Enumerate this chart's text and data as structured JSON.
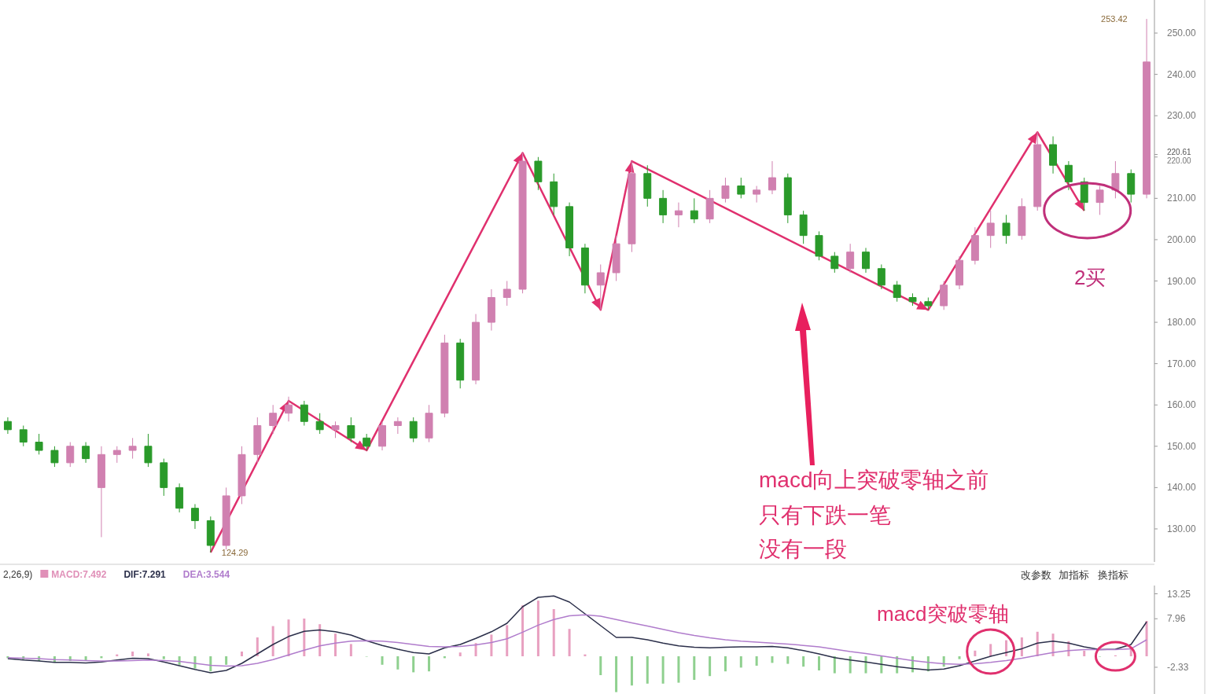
{
  "chart_data": [
    {
      "type": "candlestick",
      "categories": [
        null,
        null,
        null,
        null,
        null,
        null,
        null,
        null,
        null,
        null,
        null,
        null,
        null,
        null,
        null,
        null,
        null,
        null,
        null,
        null,
        null,
        null,
        null,
        null,
        null,
        null,
        null,
        null,
        null,
        null,
        null,
        null,
        null,
        null,
        null,
        null,
        null,
        null,
        null,
        null,
        null,
        null,
        null,
        null,
        null,
        null,
        null,
        null,
        null,
        null,
        null,
        null,
        null,
        null,
        null,
        null,
        null,
        null,
        null,
        null,
        null,
        null,
        null,
        null,
        null,
        null,
        null,
        null,
        null,
        null,
        null,
        null,
        null,
        null
      ],
      "ohlc": [
        [
          156,
          157,
          153,
          154
        ],
        [
          154,
          155,
          150,
          151
        ],
        [
          151,
          153,
          148,
          149
        ],
        [
          149,
          150,
          145,
          146
        ],
        [
          146,
          151,
          145,
          150
        ],
        [
          150,
          151,
          146,
          147
        ],
        [
          140,
          150,
          128,
          148
        ],
        [
          148,
          150,
          146,
          149
        ],
        [
          149,
          152,
          147,
          150
        ],
        [
          150,
          153,
          145,
          146
        ],
        [
          146,
          147,
          138,
          140
        ],
        [
          140,
          141,
          134,
          135
        ],
        [
          135,
          136,
          130,
          132
        ],
        [
          132,
          133,
          124.29,
          126
        ],
        [
          126,
          140,
          125,
          138
        ],
        [
          138,
          150,
          136,
          148
        ],
        [
          148,
          157,
          146,
          155
        ],
        [
          155,
          160,
          153,
          158
        ],
        [
          158,
          162,
          156,
          160
        ],
        [
          160,
          161,
          155,
          156
        ],
        [
          156,
          158,
          153,
          154
        ],
        [
          154,
          156,
          152,
          155
        ],
        [
          155,
          157,
          151,
          152
        ],
        [
          152,
          153,
          149,
          150
        ],
        [
          150,
          156,
          149,
          155
        ],
        [
          155,
          157,
          153,
          156
        ],
        [
          156,
          157,
          151,
          152
        ],
        [
          152,
          160,
          151,
          158
        ],
        [
          158,
          177,
          157,
          175
        ],
        [
          175,
          176,
          164,
          166
        ],
        [
          166,
          182,
          165,
          180
        ],
        [
          180,
          188,
          178,
          186
        ],
        [
          186,
          190,
          184,
          188
        ],
        [
          188,
          221,
          187,
          219
        ],
        [
          219,
          220,
          212,
          214
        ],
        [
          214,
          216,
          206,
          208
        ],
        [
          208,
          209,
          196,
          198
        ],
        [
          198,
          199,
          187,
          189
        ],
        [
          189,
          194,
          183,
          192
        ],
        [
          192,
          201,
          190,
          199
        ],
        [
          199,
          219,
          197,
          216
        ],
        [
          216,
          218,
          208,
          210
        ],
        [
          210,
          212,
          204,
          206
        ],
        [
          206,
          209,
          203,
          207
        ],
        [
          207,
          210,
          204,
          205
        ],
        [
          205,
          212,
          204,
          210
        ],
        [
          210,
          215,
          209,
          213
        ],
        [
          213,
          215,
          210,
          211
        ],
        [
          211,
          213,
          209,
          212
        ],
        [
          212,
          219,
          211,
          215
        ],
        [
          215,
          216,
          204,
          206
        ],
        [
          206,
          207,
          199,
          201
        ],
        [
          201,
          202,
          195,
          196
        ],
        [
          196,
          197,
          192,
          193
        ],
        [
          193,
          199,
          192,
          197
        ],
        [
          197,
          198,
          192,
          193
        ],
        [
          193,
          194,
          188,
          189
        ],
        [
          189,
          190,
          185,
          186
        ],
        [
          186,
          187,
          184,
          185
        ],
        [
          185,
          186,
          183,
          184
        ],
        [
          184,
          190,
          183,
          189
        ],
        [
          189,
          196,
          188,
          195
        ],
        [
          195,
          203,
          194,
          201
        ],
        [
          201,
          207,
          198,
          204
        ],
        [
          204,
          206,
          199,
          201
        ],
        [
          201,
          210,
          200,
          208
        ],
        [
          208,
          226,
          207,
          223
        ],
        [
          223,
          225,
          216,
          218
        ],
        [
          218,
          219,
          212,
          214
        ],
        [
          214,
          215,
          207,
          209
        ],
        [
          209,
          213,
          206,
          212
        ],
        [
          212,
          219,
          210,
          216
        ],
        [
          216,
          217,
          209,
          211
        ],
        [
          211,
          253.42,
          210,
          243
        ]
      ],
      "colors": [
        "#2a9a2a",
        "#2a9a2a",
        "#2a9a2a",
        "#2a9a2a",
        "#d080b0",
        "#2a9a2a",
        "#d080b0",
        "#d080b0",
        "#d080b0",
        "#2a9a2a",
        "#2a9a2a",
        "#2a9a2a",
        "#2a9a2a",
        "#2a9a2a",
        "#d080b0",
        "#d080b0",
        "#d080b0",
        "#d080b0",
        "#d080b0",
        "#2a9a2a",
        "#2a9a2a",
        "#d080b0",
        "#2a9a2a",
        "#2a9a2a",
        "#d080b0",
        "#d080b0",
        "#2a9a2a",
        "#d080b0",
        "#d080b0",
        "#2a9a2a",
        "#d080b0",
        "#d080b0",
        "#d080b0",
        "#d080b0",
        "#2a9a2a",
        "#2a9a2a",
        "#2a9a2a",
        "#2a9a2a",
        "#d080b0",
        "#d080b0",
        "#d080b0",
        "#2a9a2a",
        "#2a9a2a",
        "#d080b0",
        "#2a9a2a",
        "#d080b0",
        "#d080b0",
        "#2a9a2a",
        "#d080b0",
        "#d080b0",
        "#2a9a2a",
        "#2a9a2a",
        "#2a9a2a",
        "#2a9a2a",
        "#d080b0",
        "#2a9a2a",
        "#2a9a2a",
        "#2a9a2a",
        "#2a9a2a",
        "#2a9a2a",
        "#d080b0",
        "#d080b0",
        "#d080b0",
        "#d080b0",
        "#2a9a2a",
        "#d080b0",
        "#d080b0",
        "#2a9a2a",
        "#2a9a2a",
        "#2a9a2a",
        "#d080b0",
        "#d080b0",
        "#2a9a2a",
        "#d080b0"
      ],
      "series": [
        {
          "type": "line",
          "color": "#e0306e",
          "values": [
            null,
            null,
            null,
            null,
            null,
            null,
            null,
            null,
            null,
            null,
            null,
            null,
            null,
            124.3,
            null,
            null,
            null,
            null,
            161,
            null,
            null,
            null,
            null,
            149,
            null,
            null,
            null,
            null,
            null,
            null,
            null,
            null,
            null,
            221,
            null,
            null,
            null,
            null,
            183,
            null,
            219,
            null,
            null,
            null,
            null,
            null,
            null,
            null,
            null,
            null,
            null,
            null,
            null,
            null,
            null,
            null,
            null,
            null,
            null,
            183,
            null,
            null,
            null,
            null,
            null,
            null,
            226,
            null,
            null,
            207,
            null,
            null,
            null,
            null
          ]
        }
      ],
      "ylim": [
        122,
        258
      ],
      "yticks": [
        {
          "value": 130,
          "label": "130.00"
        },
        {
          "value": 140,
          "label": "140.00"
        },
        {
          "value": 150,
          "label": "150.00"
        },
        {
          "value": 160,
          "label": "160.00"
        },
        {
          "value": 170,
          "label": "170.00"
        },
        {
          "value": 180,
          "label": "180.00"
        },
        {
          "value": 190,
          "label": "190.00"
        },
        {
          "value": 200,
          "label": "200.00"
        },
        {
          "value": 210,
          "label": "210.00"
        },
        {
          "value": 220,
          "label": "220.00"
        },
        {
          "value": 220.61,
          "label": "220.61"
        },
        {
          "value": 230,
          "label": "230.00"
        },
        {
          "value": 240,
          "label": "240.00"
        },
        {
          "value": 250,
          "label": "250.00"
        }
      ],
      "tick_labels": "y",
      "annotations": [
        "124.29",
        "253.42",
        "macd向上突破零轴之前",
        "只有下跌一笔",
        "没有一段",
        "2买"
      ]
    },
    {
      "type": "line",
      "categories": [
        null,
        null,
        null,
        null,
        null,
        null,
        null,
        null,
        null,
        null,
        null,
        null,
        null,
        null,
        null,
        null,
        null,
        null,
        null,
        null,
        null,
        null,
        null,
        null,
        null,
        null,
        null,
        null,
        null,
        null,
        null,
        null,
        null,
        null,
        null,
        null,
        null,
        null,
        null,
        null,
        null,
        null,
        null,
        null,
        null,
        null,
        null,
        null,
        null,
        null,
        null,
        null,
        null,
        null,
        null,
        null,
        null,
        null,
        null,
        null,
        null,
        null,
        null,
        null,
        null,
        null,
        null,
        null,
        null,
        null,
        null,
        null,
        null,
        null
      ],
      "series": [
        {
          "name": "MACD:7.492",
          "type": "bar",
          "color": "#e090b8",
          "values": [
            -0.4,
            -0.8,
            -1.0,
            -1.2,
            -1.0,
            -1.0,
            -0.4,
            0.4,
            1.0,
            0.6,
            -0.6,
            -1.8,
            -2.6,
            -3.2,
            -1.8,
            1.0,
            4.0,
            6.4,
            7.8,
            8.0,
            6.8,
            4.8,
            2.6,
            0.0,
            -1.8,
            -2.8,
            -3.4,
            -3.2,
            -0.4,
            0.8,
            2.8,
            4.6,
            6.6,
            10.8,
            11.8,
            10.0,
            5.8,
            0.4,
            -4.0,
            -7.6,
            -6.2,
            -5.8,
            -5.8,
            -5.6,
            -5.0,
            -4.2,
            -3.2,
            -2.4,
            -2.0,
            -1.4,
            -1.6,
            -2.2,
            -3.0,
            -3.6,
            -3.6,
            -3.6,
            -3.6,
            -3.6,
            -3.4,
            -3.2,
            -2.2,
            -0.6,
            1.2,
            2.6,
            3.4,
            4.0,
            5.2,
            4.8,
            3.2,
            1.2,
            0.0,
            0.2,
            1.8,
            7.5
          ],
          "colors": [
            "#8fd08f",
            "#8fd08f",
            "#8fd08f",
            "#8fd08f",
            "#8fd08f",
            "#8fd08f",
            "#8fd08f",
            "#e8a0c0",
            "#e8a0c0",
            "#e8a0c0",
            "#8fd08f",
            "#8fd08f",
            "#8fd08f",
            "#8fd08f",
            "#8fd08f",
            "#e8a0c0",
            "#e8a0c0",
            "#e8a0c0",
            "#e8a0c0",
            "#e8a0c0",
            "#e8a0c0",
            "#e8a0c0",
            "#e8a0c0",
            "#8fd08f",
            "#8fd08f",
            "#8fd08f",
            "#8fd08f",
            "#8fd08f",
            "#8fd08f",
            "#e8a0c0",
            "#e8a0c0",
            "#e8a0c0",
            "#e8a0c0",
            "#e8a0c0",
            "#e8a0c0",
            "#e8a0c0",
            "#e8a0c0",
            "#e8a0c0",
            "#8fd08f",
            "#8fd08f",
            "#8fd08f",
            "#8fd08f",
            "#8fd08f",
            "#8fd08f",
            "#8fd08f",
            "#8fd08f",
            "#8fd08f",
            "#8fd08f",
            "#8fd08f",
            "#8fd08f",
            "#8fd08f",
            "#8fd08f",
            "#8fd08f",
            "#8fd08f",
            "#8fd08f",
            "#8fd08f",
            "#8fd08f",
            "#8fd08f",
            "#8fd08f",
            "#8fd08f",
            "#8fd08f",
            "#8fd08f",
            "#e8a0c0",
            "#e8a0c0",
            "#e8a0c0",
            "#e8a0c0",
            "#e8a0c0",
            "#e8a0c0",
            "#e8a0c0",
            "#e8a0c0",
            "#8fd08f",
            "#e8a0c0",
            "#e8a0c0",
            "#e8a0c0"
          ]
        },
        {
          "name": "DIF:7.291",
          "type": "line",
          "color": "#2b2f4a",
          "values": [
            -0.5,
            -0.8,
            -1.0,
            -1.3,
            -1.3,
            -1.4,
            -1.2,
            -0.8,
            -0.4,
            -0.5,
            -1.2,
            -2.0,
            -2.8,
            -3.5,
            -3.0,
            -1.5,
            0.5,
            2.5,
            4.2,
            5.3,
            5.6,
            5.2,
            4.5,
            3.3,
            2.3,
            1.5,
            0.8,
            0.5,
            1.8,
            2.5,
            3.8,
            5.2,
            7.0,
            10.5,
            12.5,
            12.8,
            11.5,
            9.0,
            6.5,
            4.0,
            4.0,
            3.5,
            2.8,
            2.2,
            1.9,
            1.8,
            1.9,
            2.0,
            2.0,
            2.1,
            1.8,
            1.2,
            0.5,
            -0.3,
            -0.8,
            -1.2,
            -1.7,
            -2.2,
            -2.6,
            -2.9,
            -2.7,
            -2.0,
            -1.0,
            0.0,
            0.8,
            1.6,
            2.8,
            3.2,
            2.8,
            2.0,
            1.4,
            1.5,
            2.5,
            7.3
          ]
        },
        {
          "name": "DEA:3.544",
          "type": "line",
          "color": "#b07ccc",
          "values": [
            -0.3,
            -0.4,
            -0.5,
            -0.7,
            -0.8,
            -0.9,
            -1.0,
            -1.0,
            -0.9,
            -0.8,
            -0.9,
            -1.1,
            -1.5,
            -1.9,
            -2.1,
            -2.0,
            -1.5,
            -0.7,
            0.3,
            1.3,
            2.2,
            2.8,
            3.2,
            3.3,
            3.2,
            2.9,
            2.5,
            2.1,
            2.0,
            2.1,
            2.4,
            2.9,
            3.7,
            5.1,
            6.6,
            7.8,
            8.6,
            8.8,
            8.5,
            7.8,
            7.1,
            6.4,
            5.7,
            5.0,
            4.4,
            3.9,
            3.5,
            3.2,
            3.0,
            2.8,
            2.6,
            2.3,
            2.0,
            1.5,
            1.0,
            0.6,
            0.1,
            -0.4,
            -0.9,
            -1.3,
            -1.6,
            -1.7,
            -1.6,
            -1.3,
            -0.9,
            -0.4,
            0.2,
            0.8,
            1.2,
            1.4,
            1.4,
            1.4,
            1.6,
            3.5
          ]
        }
      ],
      "ylim": [
        -8,
        15
      ],
      "yticks": [
        -2.33,
        7.96,
        13.25
      ],
      "tick_labels": "y",
      "legend": "top left",
      "legend_title": "2,26,9)",
      "annotations": [
        "macd突破零轴",
        "改参数",
        "加指标",
        "换指标"
      ]
    }
  ]
}
